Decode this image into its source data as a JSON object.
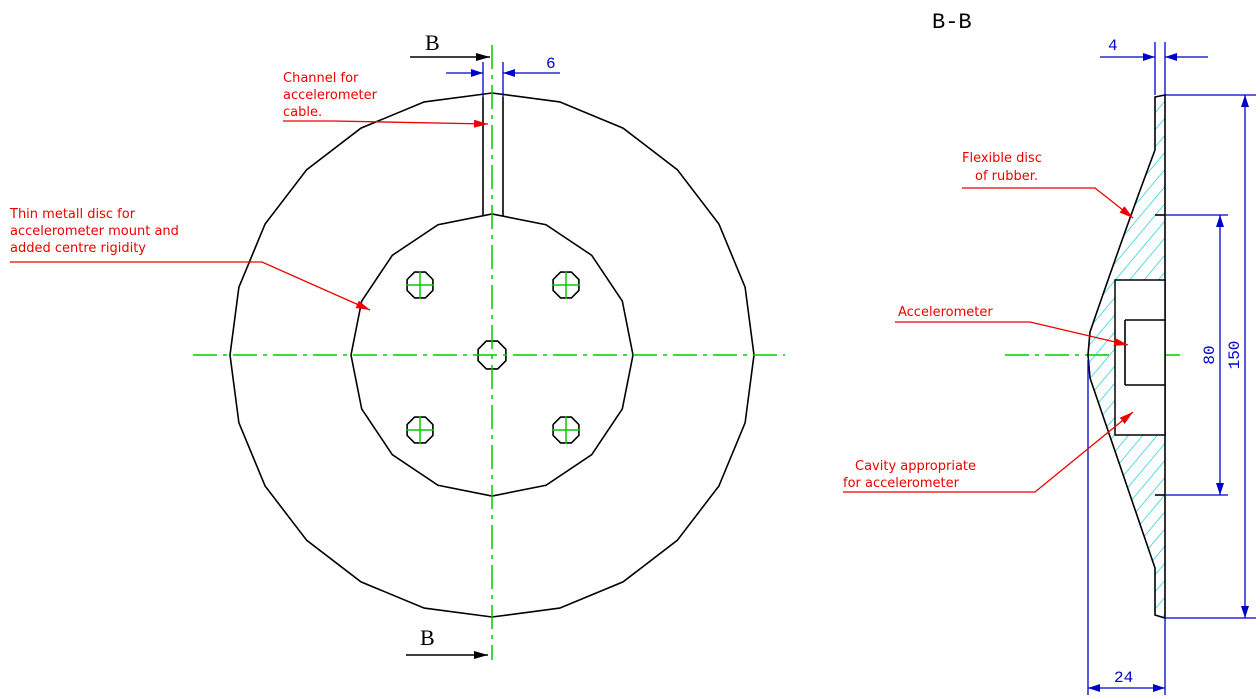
{
  "front_view": {
    "section_marks": [
      "B",
      "B"
    ],
    "dimension": 6,
    "labels": [
      {
        "lines": [
          "Channel for",
          "accelerometer",
          "cable."
        ]
      },
      {
        "lines": [
          "Thin metall disc for",
          "accelerometer mount and",
          "added centre rigidity"
        ]
      }
    ]
  },
  "section_view": {
    "title": "B-B",
    "dimensions": [
      4,
      80,
      150,
      24
    ],
    "labels": [
      {
        "lines": [
          "Flexible disc",
          "of rubber."
        ]
      },
      {
        "lines": [
          "Accelerometer"
        ]
      },
      {
        "lines": [
          "Cavity appropriate",
          "for accelerometer"
        ]
      }
    ]
  }
}
